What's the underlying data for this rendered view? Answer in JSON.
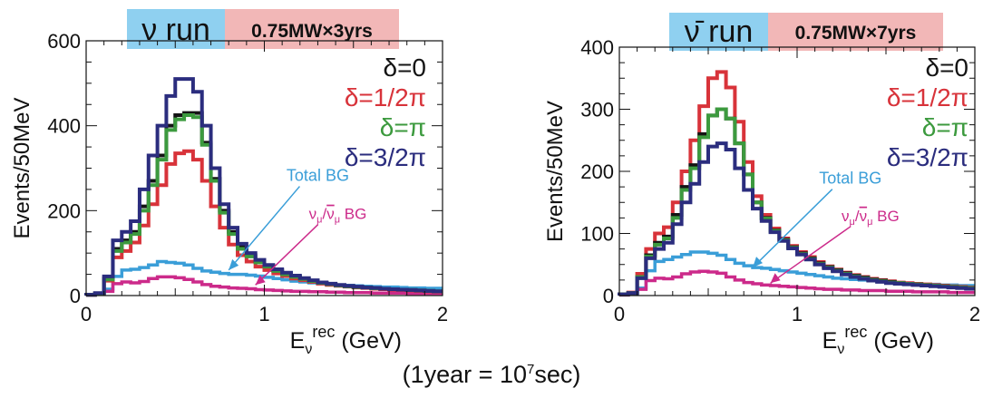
{
  "colors": {
    "delta0": "#141414",
    "delta_half_pi": "#d8333a",
    "delta_pi": "#3c9a3e",
    "delta_three_half_pi": "#2b2d7e",
    "total_bg": "#3a9ed8",
    "numu_bg": "#cc2a8a",
    "run_box": "#8fd0f0",
    "exposure_box": "#f2b7b7"
  },
  "footnote": {
    "prefix": "(1year = 10",
    "exp": "7",
    "suffix": "sec)"
  },
  "chart_data": [
    {
      "type": "line",
      "panel": "left",
      "run_label": "ν run",
      "exposure_label": "0.75MW×3yrs",
      "ylabel": "Events/50MeV",
      "xlabel": {
        "base": "E",
        "sub": "ν",
        "sup": "rec",
        "unit": " (GeV)"
      },
      "xlim": [
        0,
        2
      ],
      "ylim": [
        0,
        600
      ],
      "x_ticks": [
        "0",
        "1",
        "2"
      ],
      "y_ticks": [
        "0",
        "200",
        "400",
        "600"
      ],
      "legend": [
        "δ=0",
        "δ=1/2π",
        "δ=π",
        "δ=3/2π"
      ],
      "annotations": [
        {
          "text": "Total BG",
          "x": 1.3,
          "y": 270
        },
        {
          "text_main": "ν",
          "text_sub": "μ",
          "text_mid": "/",
          "text_main2": "ν",
          "text_sub2": "μ",
          "text_tail": " BG",
          "x": 1.25,
          "y": 180
        }
      ],
      "x": [
        0.025,
        0.075,
        0.125,
        0.175,
        0.225,
        0.275,
        0.325,
        0.375,
        0.425,
        0.475,
        0.525,
        0.575,
        0.625,
        0.675,
        0.725,
        0.775,
        0.825,
        0.875,
        0.925,
        0.975,
        1.025,
        1.075,
        1.125,
        1.175,
        1.225,
        1.275,
        1.325,
        1.375,
        1.425,
        1.475,
        1.525,
        1.575,
        1.625,
        1.675,
        1.725,
        1.775,
        1.825,
        1.875,
        1.925,
        1.975
      ],
      "series": [
        {
          "name": "δ=0",
          "values": [
            2,
            5,
            40,
            110,
            130,
            150,
            210,
            270,
            330,
            400,
            425,
            430,
            430,
            360,
            275,
            200,
            150,
            115,
            95,
            80,
            70,
            60,
            52,
            45,
            40,
            35,
            30,
            27,
            24,
            22,
            20,
            19,
            17,
            16,
            15,
            14,
            13,
            12,
            11,
            10
          ]
        },
        {
          "name": "δ=1/2π",
          "values": [
            2,
            5,
            35,
            90,
            105,
            125,
            165,
            215,
            260,
            310,
            335,
            340,
            320,
            270,
            210,
            160,
            120,
            95,
            80,
            68,
            60,
            52,
            46,
            40,
            36,
            32,
            28,
            25,
            23,
            21,
            19,
            18,
            16,
            15,
            14,
            13,
            12,
            11,
            10,
            9
          ]
        },
        {
          "name": "δ=π",
          "values": [
            2,
            5,
            38,
            105,
            125,
            145,
            200,
            260,
            320,
            390,
            415,
            425,
            420,
            355,
            270,
            195,
            145,
            110,
            92,
            78,
            68,
            58,
            50,
            44,
            39,
            34,
            30,
            27,
            24,
            22,
            20,
            19,
            17,
            16,
            15,
            14,
            13,
            12,
            11,
            10
          ]
        },
        {
          "name": "δ=3/2π",
          "values": [
            2,
            6,
            45,
            130,
            150,
            175,
            250,
            330,
            400,
            470,
            510,
            510,
            480,
            400,
            300,
            215,
            160,
            122,
            100,
            84,
            72,
            62,
            54,
            47,
            41,
            36,
            31,
            28,
            25,
            23,
            21,
            19,
            18,
            16,
            15,
            14,
            13,
            12,
            11,
            10
          ]
        },
        {
          "name": "Total BG",
          "values": [
            1,
            4,
            15,
            45,
            60,
            62,
            66,
            72,
            80,
            78,
            76,
            72,
            64,
            58,
            55,
            52,
            50,
            50,
            48,
            46,
            43,
            40,
            37,
            34,
            32,
            30,
            28,
            26,
            25,
            24,
            23,
            22,
            21,
            20,
            20,
            19,
            18,
            18,
            17,
            17
          ]
        },
        {
          "name": "νμ/ν̄μ BG",
          "values": [
            1,
            3,
            10,
            28,
            32,
            30,
            33,
            40,
            44,
            44,
            42,
            38,
            32,
            26,
            22,
            20,
            18,
            17,
            16,
            14,
            13,
            12,
            11,
            10,
            10,
            9,
            9,
            8,
            8,
            7,
            7,
            7,
            6,
            6,
            6,
            6,
            5,
            5,
            5,
            5
          ]
        }
      ]
    },
    {
      "type": "line",
      "panel": "right",
      "run_label": "ν̄ run",
      "exposure_label": "0.75MW×7yrs",
      "ylabel": "Events/50MeV",
      "xlabel": {
        "base": "E",
        "sub": "ν",
        "sup": "rec",
        "unit": " (GeV)"
      },
      "xlim": [
        0,
        2
      ],
      "ylim": [
        0,
        400
      ],
      "x_ticks": [
        "0",
        "1",
        "2"
      ],
      "y_ticks": [
        "0",
        "100",
        "200",
        "300",
        "400"
      ],
      "legend": [
        "δ=0",
        "δ=1/2π",
        "δ=π",
        "δ=3/2π"
      ],
      "annotations": [
        {
          "text": "Total BG",
          "x": 1.3,
          "y": 180
        },
        {
          "text_main": "ν",
          "text_sub": "μ",
          "text_mid": "/",
          "text_main2": "ν",
          "text_sub2": "μ",
          "text_tail": " BG",
          "x": 1.25,
          "y": 120
        }
      ],
      "x": [
        0.025,
        0.075,
        0.125,
        0.175,
        0.225,
        0.275,
        0.325,
        0.375,
        0.425,
        0.475,
        0.525,
        0.575,
        0.625,
        0.675,
        0.725,
        0.775,
        0.825,
        0.875,
        0.925,
        0.975,
        1.025,
        1.075,
        1.125,
        1.175,
        1.225,
        1.275,
        1.325,
        1.375,
        1.425,
        1.475,
        1.525,
        1.575,
        1.625,
        1.675,
        1.725,
        1.775,
        1.825,
        1.875,
        1.925,
        1.975
      ],
      "series": [
        {
          "name": "δ=0",
          "values": [
            2,
            4,
            30,
            65,
            85,
            95,
            130,
            175,
            210,
            260,
            290,
            300,
            285,
            245,
            195,
            150,
            125,
            105,
            90,
            78,
            68,
            60,
            52,
            46,
            41,
            36,
            32,
            29,
            26,
            24,
            22,
            20,
            19,
            18,
            17,
            16,
            15,
            14,
            13,
            12
          ]
        },
        {
          "name": "δ=1/2π",
          "values": [
            2,
            5,
            35,
            75,
            100,
            110,
            150,
            200,
            250,
            305,
            350,
            360,
            335,
            280,
            215,
            160,
            130,
            108,
            92,
            80,
            70,
            62,
            54,
            47,
            42,
            37,
            33,
            30,
            27,
            25,
            23,
            21,
            20,
            19,
            18,
            17,
            16,
            15,
            14,
            13
          ]
        },
        {
          "name": "δ=π",
          "values": [
            2,
            4,
            30,
            63,
            82,
            92,
            125,
            170,
            205,
            255,
            290,
            300,
            285,
            245,
            195,
            150,
            124,
            104,
            89,
            77,
            67,
            59,
            51,
            45,
            40,
            35,
            31,
            28,
            25,
            23,
            21,
            20,
            19,
            18,
            17,
            16,
            15,
            14,
            13,
            12
          ]
        },
        {
          "name": "δ=3/2π",
          "values": [
            2,
            4,
            28,
            60,
            75,
            85,
            115,
            150,
            180,
            215,
            240,
            245,
            235,
            205,
            170,
            140,
            120,
            102,
            88,
            76,
            66,
            58,
            50,
            44,
            39,
            34,
            30,
            27,
            24,
            22,
            20,
            19,
            18,
            17,
            16,
            15,
            14,
            13,
            12,
            11
          ]
        },
        {
          "name": "Total BG",
          "values": [
            1,
            3,
            12,
            40,
            55,
            58,
            62,
            66,
            70,
            70,
            68,
            65,
            58,
            52,
            48,
            45,
            44,
            42,
            40,
            38,
            36,
            34,
            32,
            30,
            28,
            27,
            26,
            25,
            24,
            23,
            22,
            21,
            20,
            19,
            18,
            18,
            17,
            17,
            16,
            16
          ]
        },
        {
          "name": "νμ/ν̄μ BG",
          "values": [
            1,
            3,
            10,
            24,
            28,
            27,
            30,
            35,
            38,
            39,
            38,
            36,
            30,
            25,
            21,
            19,
            17,
            16,
            15,
            14,
            13,
            12,
            11,
            10,
            10,
            9,
            9,
            8,
            8,
            8,
            7,
            7,
            7,
            6,
            6,
            6,
            6,
            5,
            5,
            5
          ]
        }
      ]
    }
  ]
}
